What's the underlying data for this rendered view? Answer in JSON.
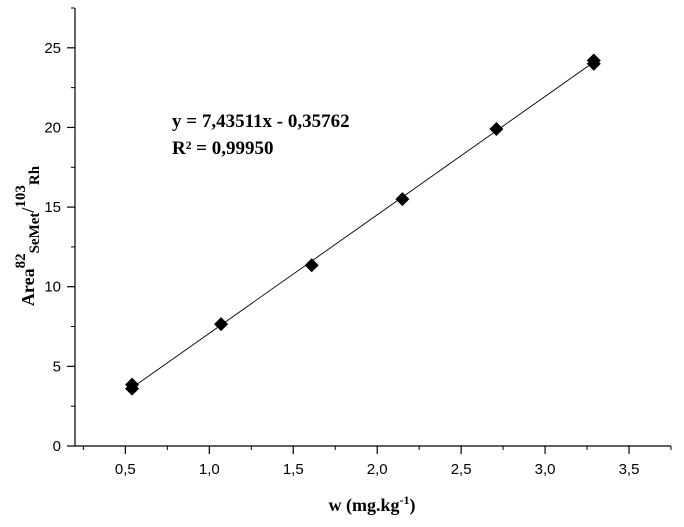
{
  "chart_data": {
    "type": "scatter",
    "title": "",
    "xlabel": {
      "main": "w (mg.kg",
      "sup": "-1",
      "close": ")"
    },
    "ylabel": {
      "base": "Area",
      "sup1": "82",
      "sub1": "SeMet",
      "slash": "/",
      "sup2": "103",
      "sub2": "Rh"
    },
    "xlim": [
      0.2,
      3.75
    ],
    "ylim": [
      0,
      27.5
    ],
    "xticks": [
      0.5,
      1.0,
      1.5,
      2.0,
      2.5,
      3.0,
      3.5
    ],
    "xtick_labels": [
      "0,5",
      "1,0",
      "1,5",
      "2,0",
      "2,5",
      "3,0",
      "3,5"
    ],
    "yticks": [
      0,
      5,
      10,
      15,
      20,
      25
    ],
    "ytick_labels": [
      "0",
      "5",
      "10",
      "15",
      "20",
      "25"
    ],
    "grid": false,
    "legend": "none",
    "series": [
      {
        "marker": "diamond",
        "color": "#000000",
        "points": [
          {
            "x": 0.54,
            "y": 3.6
          },
          {
            "x": 0.54,
            "y": 3.85
          },
          {
            "x": 1.07,
            "y": 7.65
          },
          {
            "x": 1.61,
            "y": 11.35
          },
          {
            "x": 2.15,
            "y": 15.5
          },
          {
            "x": 2.71,
            "y": 19.9
          },
          {
            "x": 3.29,
            "y": 24.0
          },
          {
            "x": 3.29,
            "y": 24.2
          }
        ]
      }
    ],
    "fit_line": {
      "slope": 7.43511,
      "intercept": -0.35762,
      "x_range": [
        0.54,
        3.29
      ],
      "color": "#000000"
    },
    "annotations": {
      "equation": "y = 7,43511x - 0,35762",
      "r_squared": "R² = 0,99950"
    }
  }
}
